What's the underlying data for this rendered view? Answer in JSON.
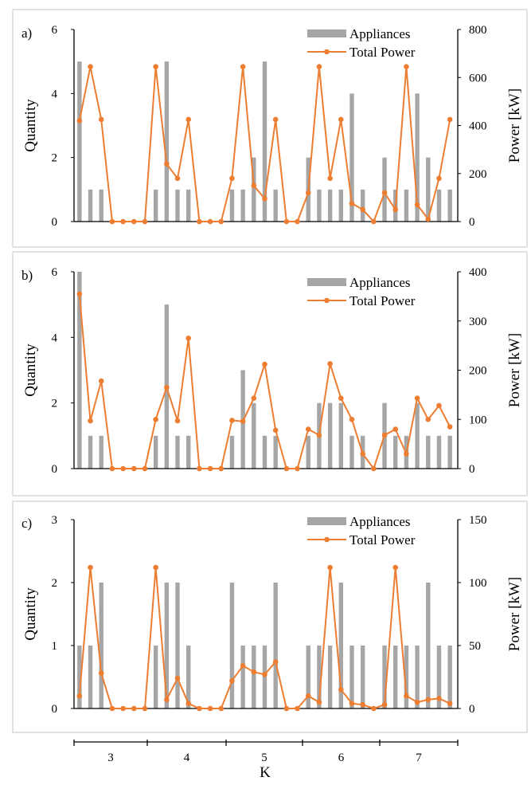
{
  "x_axis": {
    "group_labels": [
      "3",
      "4",
      "5",
      "6",
      "7"
    ],
    "label": "K"
  },
  "colors": {
    "bar": "#a6a6a6",
    "line": "#ed7d31",
    "axis": "#000000",
    "frame": "#d9d9d9"
  },
  "chart_data": [
    {
      "type": "bar+line",
      "panel_label": "a)",
      "ylabel_left": "Quantity",
      "ylabel_right": "Power [kW]",
      "ylim_left": [
        0,
        6
      ],
      "ylim_right": [
        0,
        800
      ],
      "yticks_left": [
        "0",
        "2",
        "4",
        "6"
      ],
      "yticks_right": [
        "0",
        "200",
        "400",
        "600",
        "800"
      ],
      "legend_position": "top-right",
      "series": [
        {
          "name": "Appliances",
          "kind": "bar",
          "axis": "left",
          "values": [
            5,
            1,
            1,
            0,
            0,
            0,
            0,
            1,
            5,
            1,
            1,
            0,
            0,
            0,
            1,
            1,
            2,
            5,
            1,
            0,
            0,
            2,
            1,
            1,
            1,
            4,
            1,
            0,
            2,
            1,
            1,
            4,
            2,
            1,
            1
          ]
        },
        {
          "name": "Total Power",
          "kind": "line",
          "axis": "right",
          "values": [
            420,
            645,
            425,
            0,
            0,
            0,
            0,
            645,
            240,
            180,
            425,
            0,
            0,
            0,
            180,
            645,
            150,
            95,
            425,
            0,
            0,
            120,
            645,
            180,
            425,
            75,
            50,
            0,
            120,
            50,
            645,
            70,
            10,
            180,
            425
          ]
        }
      ]
    },
    {
      "type": "bar+line",
      "panel_label": "b)",
      "ylabel_left": "Quantity",
      "ylabel_right": "Power [kW]",
      "ylim_left": [
        0,
        6
      ],
      "ylim_right": [
        0,
        400
      ],
      "yticks_left": [
        "0",
        "2",
        "4",
        "6"
      ],
      "yticks_right": [
        "0",
        "100",
        "200",
        "300",
        "400"
      ],
      "legend_position": "top-right",
      "series": [
        {
          "name": "Appliances",
          "kind": "bar",
          "axis": "left",
          "values": [
            6,
            1,
            1,
            0,
            0,
            0,
            0,
            1,
            5,
            1,
            1,
            0,
            0,
            0,
            1,
            3,
            2,
            1,
            1,
            0,
            0,
            1,
            2,
            2,
            2,
            1,
            1,
            0,
            2,
            1,
            1,
            2,
            1,
            1,
            1
          ]
        },
        {
          "name": "Total Power",
          "kind": "line",
          "axis": "right",
          "values": [
            355,
            97,
            178,
            0,
            0,
            0,
            0,
            100,
            165,
            97,
            265,
            0,
            0,
            0,
            98,
            96,
            143,
            212,
            78,
            0,
            0,
            80,
            68,
            213,
            143,
            100,
            30,
            0,
            68,
            80,
            30,
            143,
            100,
            128,
            85
          ]
        }
      ]
    },
    {
      "type": "bar+line",
      "panel_label": "c)",
      "ylabel_left": "Quantity",
      "ylabel_right": "Power [kW]",
      "ylim_left": [
        0,
        3
      ],
      "ylim_right": [
        0,
        150
      ],
      "yticks_left": [
        "0",
        "1",
        "2",
        "3"
      ],
      "yticks_right": [
        "0",
        "50",
        "100",
        "150"
      ],
      "legend_position": "top-right",
      "series": [
        {
          "name": "Appliances",
          "kind": "bar",
          "axis": "left",
          "values": [
            1,
            1,
            2,
            0,
            0,
            0,
            0,
            1,
            2,
            2,
            1,
            0,
            0,
            0,
            2,
            1,
            1,
            1,
            2,
            0,
            0,
            1,
            1,
            1,
            2,
            1,
            1,
            0,
            1,
            1,
            1,
            1,
            2,
            1,
            1
          ]
        },
        {
          "name": "Total Power",
          "kind": "line",
          "axis": "right",
          "values": [
            10,
            112,
            28,
            0,
            0,
            0,
            0,
            112,
            7,
            24,
            4,
            0,
            0,
            0,
            22,
            34,
            29,
            27,
            37,
            0,
            0,
            10,
            5,
            112,
            15,
            4,
            3,
            0,
            3,
            112,
            10,
            5,
            7,
            8,
            4
          ]
        }
      ]
    }
  ]
}
